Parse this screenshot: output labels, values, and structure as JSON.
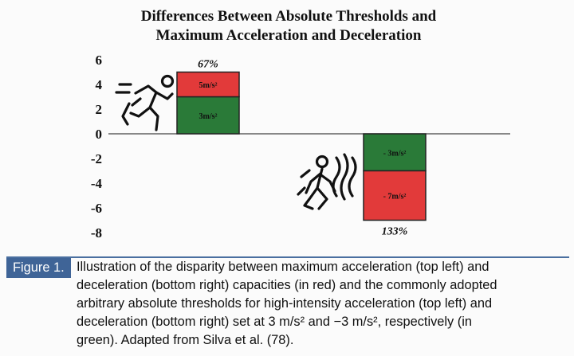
{
  "chart_data": {
    "type": "bar",
    "title_lines": [
      "Differences Between Absolute Thresholds and",
      "Maximum Acceleration and Deceleration"
    ],
    "ylim": [
      -8,
      6
    ],
    "yticks": [
      "6",
      "4",
      "2",
      "0",
      "-2",
      "-4",
      "-6",
      "-8"
    ],
    "categories": [
      "Acceleration",
      "Deceleration"
    ],
    "series": [
      {
        "name": "Absolute threshold",
        "color": "#2a7a38",
        "values": [
          3,
          -3
        ],
        "labels": [
          "3m/s²",
          "- 3m/s²"
        ]
      },
      {
        "name": "Difference to maximum",
        "color": "#e23a3a",
        "values": [
          2,
          -4
        ],
        "labels": [
          "5m/s²",
          "- 7m/s²"
        ]
      }
    ],
    "totals": [
      5,
      -7
    ],
    "percent_labels": [
      "67%",
      "133%"
    ],
    "icons": [
      "sprinting-runner-icon",
      "braking-runner-icon"
    ]
  },
  "caption": {
    "label": "Figure 1.",
    "lines": [
      "Illustration of the disparity between maximum acceleration (top left) and",
      "deceleration (bottom right) capacities (in red) and the commonly adopted",
      "arbitrary absolute thresholds for high-intensity acceleration (top left) and",
      "deceleration (bottom right) set at 3 m/s² and −3 m/s², respectively (in",
      "green). Adapted from Silva et al. (78)."
    ]
  }
}
